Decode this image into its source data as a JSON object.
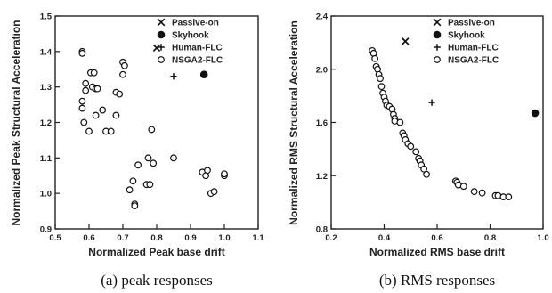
{
  "chart_data": [
    {
      "type": "scatter",
      "xlabel": "Normalized Peak base drift",
      "ylabel": "Normalized Peak Structural Acceleration",
      "xlim": [
        0.5,
        1.1
      ],
      "ylim": [
        0.9,
        1.5
      ],
      "xticks": [
        "0.5",
        "0.6",
        "0.7",
        "0.8",
        "0.9",
        "1.0",
        "1.1"
      ],
      "yticks": [
        "0.9",
        "1.0",
        "1.1",
        "1.2",
        "1.3",
        "1.4",
        "1.5"
      ],
      "legend_position": "top-right",
      "caption": "(a) peak responses",
      "series": [
        {
          "name": "Passive-on",
          "marker": "x",
          "points": [
            [
              0.8,
              1.41
            ]
          ]
        },
        {
          "name": "Skyhook",
          "marker": "filled-circle",
          "points": [
            [
              0.94,
              1.335
            ]
          ]
        },
        {
          "name": "Human-FLC",
          "marker": "plus",
          "points": [
            [
              0.85,
              1.33
            ]
          ]
        },
        {
          "name": "NSGA2-FLC",
          "marker": "open-circle",
          "points": [
            [
              0.58,
              1.4
            ],
            [
              0.58,
              1.395
            ],
            [
              0.58,
              1.26
            ],
            [
              0.58,
              1.24
            ],
            [
              0.585,
              1.2
            ],
            [
              0.59,
              1.31
            ],
            [
              0.59,
              1.29
            ],
            [
              0.6,
              1.175
            ],
            [
              0.605,
              1.34
            ],
            [
              0.61,
              1.3
            ],
            [
              0.615,
              1.34
            ],
            [
              0.62,
              1.295
            ],
            [
              0.62,
              1.22
            ],
            [
              0.625,
              1.295
            ],
            [
              0.64,
              1.235
            ],
            [
              0.65,
              1.175
            ],
            [
              0.665,
              1.175
            ],
            [
              0.68,
              1.285
            ],
            [
              0.68,
              1.22
            ],
            [
              0.69,
              1.28
            ],
            [
              0.7,
              1.37
            ],
            [
              0.7,
              1.335
            ],
            [
              0.705,
              1.36
            ],
            [
              0.72,
              1.01
            ],
            [
              0.73,
              1.035
            ],
            [
              0.735,
              0.97
            ],
            [
              0.735,
              0.965
            ],
            [
              0.745,
              1.08
            ],
            [
              0.77,
              1.025
            ],
            [
              0.775,
              1.1
            ],
            [
              0.78,
              1.025
            ],
            [
              0.785,
              1.18
            ],
            [
              0.79,
              1.085
            ],
            [
              0.85,
              1.1
            ],
            [
              0.935,
              1.06
            ],
            [
              0.945,
              1.05
            ],
            [
              0.95,
              1.065
            ],
            [
              0.96,
              1.0
            ],
            [
              0.97,
              1.005
            ],
            [
              1.0,
              1.05
            ],
            [
              1.0,
              1.055
            ]
          ]
        }
      ]
    },
    {
      "type": "scatter",
      "xlabel": "Normalized RMS base drift",
      "ylabel": "Normalized RMS Structural Acceleration",
      "xlim": [
        0.2,
        1.0
      ],
      "ylim": [
        0.8,
        2.4
      ],
      "xticks": [
        "0.2",
        "0.4",
        "0.6",
        "0.8",
        "1.0"
      ],
      "yticks": [
        "0.8",
        "1.2",
        "1.6",
        "2.0",
        "2.4"
      ],
      "legend_position": "top-right",
      "caption": "(b) RMS responses",
      "series": [
        {
          "name": "Passive-on",
          "marker": "x",
          "points": [
            [
              0.48,
              2.21
            ]
          ]
        },
        {
          "name": "Skyhook",
          "marker": "filled-circle",
          "points": [
            [
              0.97,
              1.67
            ]
          ]
        },
        {
          "name": "Human-FLC",
          "marker": "plus",
          "points": [
            [
              0.58,
              1.75
            ]
          ]
        },
        {
          "name": "NSGA2-FLC",
          "marker": "open-circle",
          "points": [
            [
              0.355,
              2.14
            ],
            [
              0.36,
              2.12
            ],
            [
              0.365,
              2.08
            ],
            [
              0.37,
              2.02
            ],
            [
              0.375,
              2.0
            ],
            [
              0.38,
              1.96
            ],
            [
              0.385,
              1.93
            ],
            [
              0.39,
              1.87
            ],
            [
              0.395,
              1.82
            ],
            [
              0.4,
              1.79
            ],
            [
              0.405,
              1.76
            ],
            [
              0.41,
              1.73
            ],
            [
              0.42,
              1.72
            ],
            [
              0.43,
              1.7
            ],
            [
              0.435,
              1.66
            ],
            [
              0.44,
              1.63
            ],
            [
              0.44,
              1.61
            ],
            [
              0.46,
              1.6
            ],
            [
              0.47,
              1.52
            ],
            [
              0.475,
              1.5
            ],
            [
              0.48,
              1.47
            ],
            [
              0.49,
              1.44
            ],
            [
              0.5,
              1.42
            ],
            [
              0.52,
              1.38
            ],
            [
              0.53,
              1.33
            ],
            [
              0.535,
              1.31
            ],
            [
              0.54,
              1.28
            ],
            [
              0.55,
              1.25
            ],
            [
              0.56,
              1.21
            ],
            [
              0.67,
              1.16
            ],
            [
              0.675,
              1.15
            ],
            [
              0.68,
              1.13
            ],
            [
              0.7,
              1.12
            ],
            [
              0.74,
              1.08
            ],
            [
              0.77,
              1.07
            ],
            [
              0.82,
              1.05
            ],
            [
              0.83,
              1.05
            ],
            [
              0.85,
              1.04
            ],
            [
              0.87,
              1.04
            ]
          ]
        }
      ]
    }
  ]
}
